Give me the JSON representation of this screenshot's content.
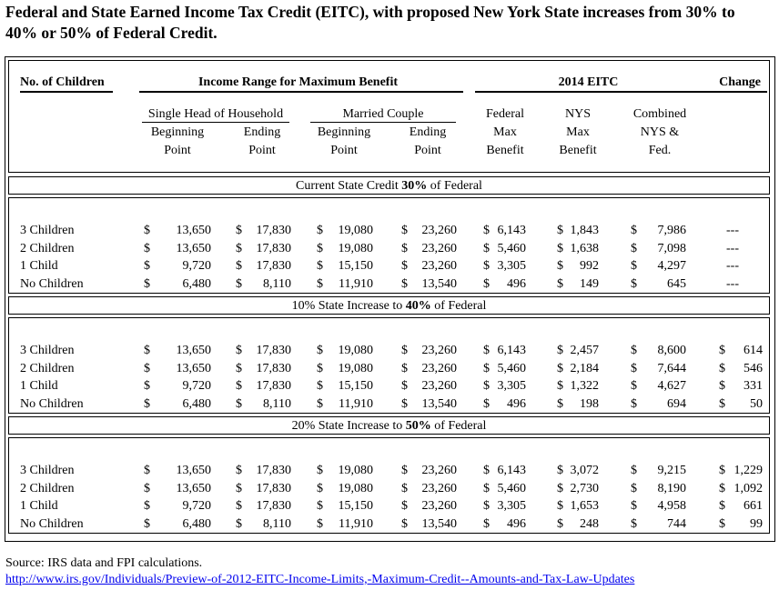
{
  "title": "Federal and State Earned Income Tax Credit (EITC), with proposed New York State increases from 30% to 40% or 50% of Federal Credit.",
  "header": {
    "col_children": "No. of Children",
    "income_range": "Income  Range for Maximum Benefit",
    "eitc_2014": "2014 EITC",
    "change": "Change",
    "single": "Single Head of Household",
    "married": "Married Couple",
    "beginning": "Beginning",
    "ending": "Ending",
    "point": "Point",
    "federal": "Federal",
    "max": "Max",
    "benefit": "Benefit",
    "nys": "NYS",
    "combined": "Combined",
    "nys_and": "NYS &",
    "fed": "Fed."
  },
  "sections": [
    {
      "label_pre": "Current State Credit ",
      "label_bold": "30%",
      "label_post": " of Federal",
      "rows": [
        {
          "children": "3 Children",
          "s_begin": "13,650",
          "s_end": "17,830",
          "m_begin": "19,080",
          "m_end": "23,260",
          "fed": "6,143",
          "nys": "1,843",
          "combined": "7,986",
          "change": "---"
        },
        {
          "children": "2 Children",
          "s_begin": "13,650",
          "s_end": "17,830",
          "m_begin": "19,080",
          "m_end": "23,260",
          "fed": "5,460",
          "nys": "1,638",
          "combined": "7,098",
          "change": "---"
        },
        {
          "children": "1 Child",
          "s_begin": "9,720",
          "s_end": "17,830",
          "m_begin": "15,150",
          "m_end": "23,260",
          "fed": "3,305",
          "nys": "992",
          "combined": "4,297",
          "change": "---"
        },
        {
          "children": "No Children",
          "s_begin": "6,480",
          "s_end": "8,110",
          "m_begin": "11,910",
          "m_end": "13,540",
          "fed": "496",
          "nys": "149",
          "combined": "645",
          "change": "---"
        }
      ]
    },
    {
      "label_pre": "10% State Increase to ",
      "label_bold": "40%",
      "label_post": " of Federal",
      "rows": [
        {
          "children": "3 Children",
          "s_begin": "13,650",
          "s_end": "17,830",
          "m_begin": "19,080",
          "m_end": "23,260",
          "fed": "6,143",
          "nys": "2,457",
          "combined": "8,600",
          "change": "614"
        },
        {
          "children": "2 Children",
          "s_begin": "13,650",
          "s_end": "17,830",
          "m_begin": "19,080",
          "m_end": "23,260",
          "fed": "5,460",
          "nys": "2,184",
          "combined": "7,644",
          "change": "546"
        },
        {
          "children": "1 Child",
          "s_begin": "9,720",
          "s_end": "17,830",
          "m_begin": "15,150",
          "m_end": "23,260",
          "fed": "3,305",
          "nys": "1,322",
          "combined": "4,627",
          "change": "331"
        },
        {
          "children": "No Children",
          "s_begin": "6,480",
          "s_end": "8,110",
          "m_begin": "11,910",
          "m_end": "13,540",
          "fed": "496",
          "nys": "198",
          "combined": "694",
          "change": "50"
        }
      ]
    },
    {
      "label_pre": "20% State Increase to ",
      "label_bold": "50%",
      "label_post": " of Federal",
      "rows": [
        {
          "children": "3 Children",
          "s_begin": "13,650",
          "s_end": "17,830",
          "m_begin": "19,080",
          "m_end": "23,260",
          "fed": "6,143",
          "nys": "3,072",
          "combined": "9,215",
          "change": "1,229"
        },
        {
          "children": "2 Children",
          "s_begin": "13,650",
          "s_end": "17,830",
          "m_begin": "19,080",
          "m_end": "23,260",
          "fed": "5,460",
          "nys": "2,730",
          "combined": "8,190",
          "change": "1,092"
        },
        {
          "children": "1 Child",
          "s_begin": "9,720",
          "s_end": "17,830",
          "m_begin": "15,150",
          "m_end": "23,260",
          "fed": "3,305",
          "nys": "1,653",
          "combined": "4,958",
          "change": "661"
        },
        {
          "children": "No Children",
          "s_begin": "6,480",
          "s_end": "8,110",
          "m_begin": "11,910",
          "m_end": "13,540",
          "fed": "496",
          "nys": "248",
          "combined": "744",
          "change": "99"
        }
      ]
    }
  ],
  "currency": "$",
  "footer": {
    "source": "Source:  IRS data and FPI calculations.",
    "link": "http://www.irs.gov/Individuals/Preview-of-2012-EITC-Income-Limits,-Maximum-Credit--Amounts-and-Tax-Law-Updates"
  }
}
